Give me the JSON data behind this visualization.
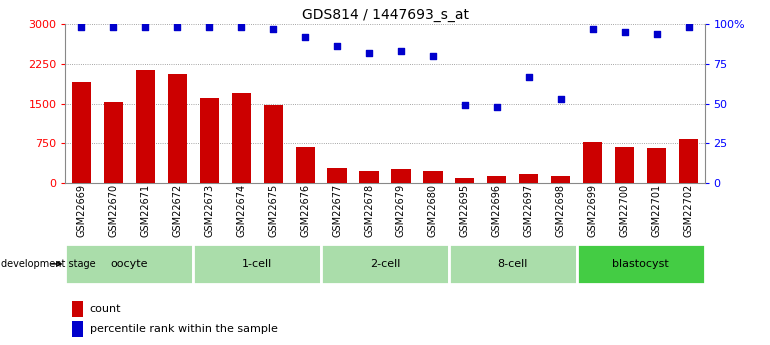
{
  "title": "GDS814 / 1447693_s_at",
  "samples": [
    "GSM22669",
    "GSM22670",
    "GSM22671",
    "GSM22672",
    "GSM22673",
    "GSM22674",
    "GSM22675",
    "GSM22676",
    "GSM22677",
    "GSM22678",
    "GSM22679",
    "GSM22680",
    "GSM22695",
    "GSM22696",
    "GSM22697",
    "GSM22698",
    "GSM22699",
    "GSM22700",
    "GSM22701",
    "GSM22702"
  ],
  "counts": [
    1900,
    1530,
    2130,
    2050,
    1600,
    1700,
    1480,
    680,
    280,
    230,
    270,
    230,
    90,
    130,
    175,
    130,
    780,
    680,
    650,
    820
  ],
  "percentiles": [
    98,
    98,
    98,
    98,
    98,
    98,
    97,
    92,
    86,
    82,
    83,
    80,
    49,
    48,
    67,
    53,
    97,
    95,
    94,
    98
  ],
  "groups": [
    {
      "label": "oocyte",
      "start": 0,
      "end": 4,
      "color": "#bbeeaa"
    },
    {
      "label": "1-cell",
      "start": 4,
      "end": 8,
      "color": "#bbeeaa"
    },
    {
      "label": "2-cell",
      "start": 8,
      "end": 12,
      "color": "#bbeeaa"
    },
    {
      "label": "8-cell",
      "start": 12,
      "end": 16,
      "color": "#bbeeaa"
    },
    {
      "label": "blastocyst",
      "start": 16,
      "end": 20,
      "color": "#44cc44"
    }
  ],
  "bar_color": "#cc0000",
  "dot_color": "#0000cc",
  "ylim_left": [
    0,
    3000
  ],
  "ylim_right": [
    0,
    100
  ],
  "yticks_left": [
    0,
    750,
    1500,
    2250,
    3000
  ],
  "yticks_right": [
    0,
    25,
    50,
    75,
    100
  ],
  "yticklabels_right": [
    "0",
    "25",
    "50",
    "75",
    "100%"
  ],
  "bg_color": "#ffffff",
  "grid_color": "#888888",
  "label_count": "count",
  "label_pct": "percentile rank within the sample",
  "dev_stage_label": "development stage"
}
